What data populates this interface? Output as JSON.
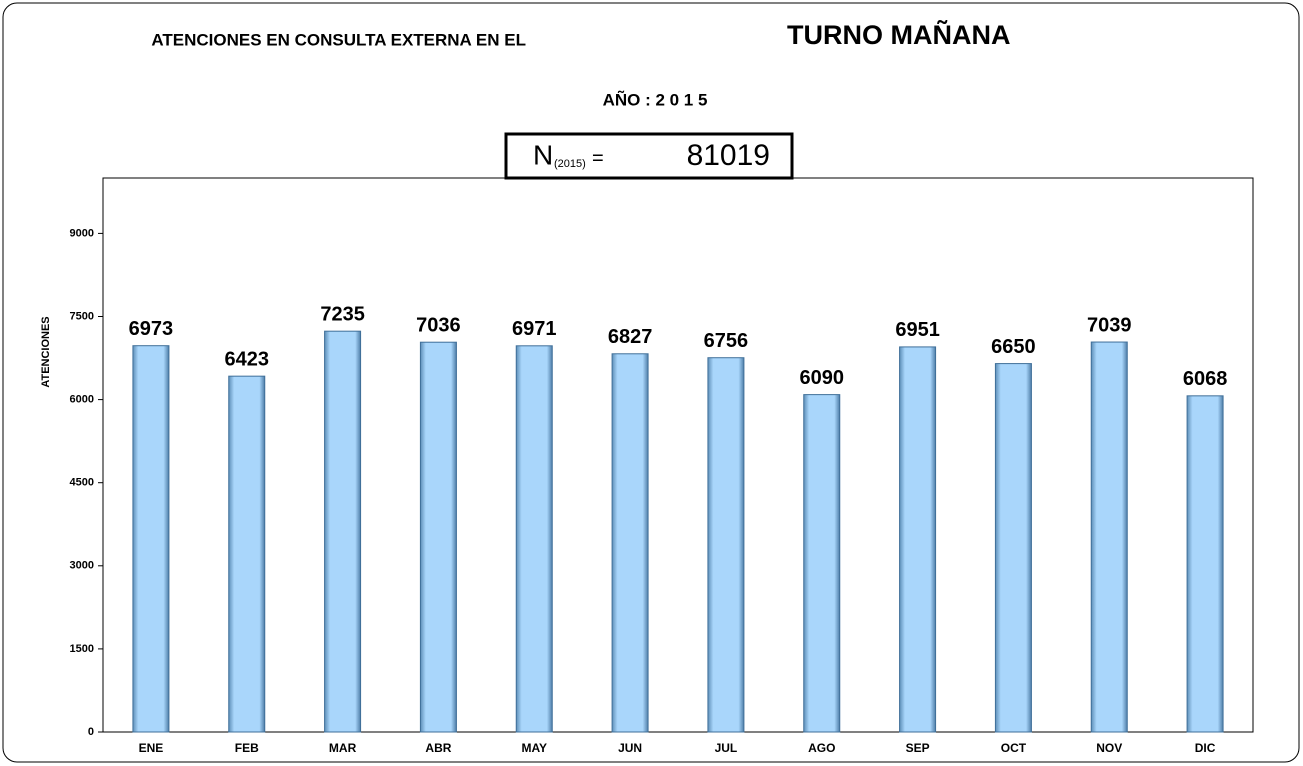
{
  "chart_data": {
    "type": "bar",
    "title": "ATENCIONES EN CONSULTA EXTERNA EN EL",
    "title_emphasis": "TURNO MAÑANA",
    "subtitle": "AÑO : 2 0 1 5",
    "total_box": {
      "symbol": "N",
      "subscript": "(2015)",
      "equals": "=",
      "total": 81019
    },
    "y_label": "ATENCIONES",
    "categories": [
      "ENE",
      "FEB",
      "MAR",
      "ABR",
      "MAY",
      "JUN",
      "JUL",
      "AGO",
      "SEP",
      "OCT",
      "NOV",
      "DIC"
    ],
    "values": [
      6973,
      6423,
      7235,
      7036,
      6971,
      6827,
      6756,
      6090,
      6951,
      6650,
      7039,
      6068
    ],
    "color": "#a9d6fb",
    "ylim": [
      0,
      10000
    ],
    "yticks": [
      0,
      1500,
      3000,
      4500,
      6000,
      7500,
      9000
    ],
    "grid": false
  }
}
